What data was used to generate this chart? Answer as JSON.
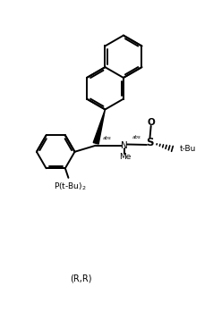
{
  "background_color": "#ffffff",
  "line_color": "#000000",
  "line_width": 1.4,
  "font_size": 6.5,
  "title": "(R,R)",
  "xlim": [
    0,
    10
  ],
  "ylim": [
    0,
    14.6
  ]
}
